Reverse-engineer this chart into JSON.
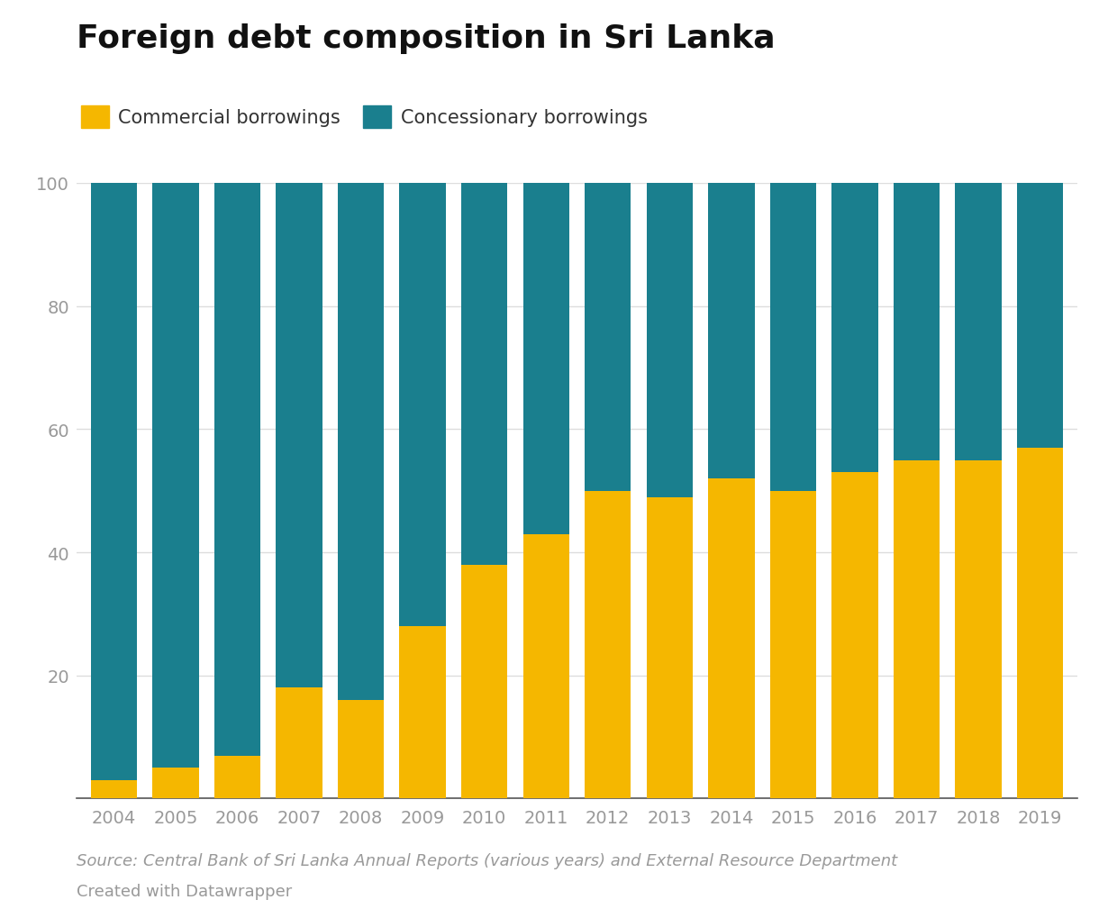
{
  "years": [
    2004,
    2005,
    2006,
    2007,
    2008,
    2009,
    2010,
    2011,
    2012,
    2013,
    2014,
    2015,
    2016,
    2017,
    2018,
    2019
  ],
  "commercial": [
    3,
    5,
    7,
    18,
    16,
    28,
    38,
    43,
    50,
    49,
    52,
    50,
    53,
    55,
    55,
    57
  ],
  "concessionary": [
    97,
    95,
    93,
    82,
    84,
    72,
    62,
    57,
    50,
    51,
    48,
    50,
    47,
    45,
    45,
    43
  ],
  "commercial_color": "#F5B700",
  "concessionary_color": "#1A7F8E",
  "title": "Foreign debt composition in Sri Lanka",
  "legend_commercial": "Commercial borrowings",
  "legend_concessionary": "Concessionary borrowings",
  "source_text": "Source: Central Bank of Sri Lanka Annual Reports (various years) and External Resource Department",
  "credit_text": "Created with Datawrapper",
  "ylim": [
    0,
    100
  ],
  "yticks": [
    20,
    40,
    60,
    80,
    100
  ],
  "background_color": "#ffffff",
  "title_fontsize": 26,
  "legend_fontsize": 15,
  "tick_fontsize": 14,
  "source_fontsize": 13,
  "bar_width": 0.75,
  "grid_color": "#dddddd",
  "axis_label_color": "#999999"
}
